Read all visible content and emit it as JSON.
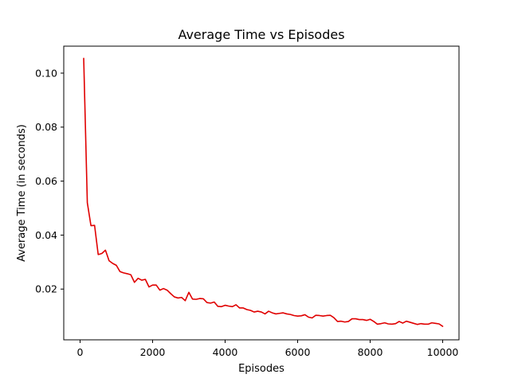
{
  "chart_data": {
    "type": "line",
    "title": "Average Time vs Episodes",
    "xlabel": "Episodes",
    "ylabel": "Average Time (in seconds)",
    "xlim": [
      -450,
      10450
    ],
    "ylim": [
      0.0012,
      0.11
    ],
    "xticks": [
      0,
      2000,
      4000,
      6000,
      8000,
      10000
    ],
    "xtick_labels": [
      "0",
      "2000",
      "4000",
      "6000",
      "8000",
      "10000"
    ],
    "yticks": [
      0.02,
      0.04,
      0.06,
      0.08,
      0.1
    ],
    "ytick_labels": [
      "0.02",
      "0.04",
      "0.06",
      "0.08",
      "0.10"
    ],
    "grid": false,
    "legend": "none",
    "series": [
      {
        "color": "#e00000",
        "x": [
          100,
          200,
          300,
          400,
          500,
          600,
          700,
          800,
          900,
          1000,
          1100,
          1200,
          1300,
          1400,
          1500,
          1600,
          1700,
          1800,
          1900,
          2000,
          2100,
          2200,
          2300,
          2400,
          2500,
          2600,
          2700,
          2800,
          2900,
          3000,
          3100,
          3200,
          3300,
          3400,
          3500,
          3600,
          3700,
          3800,
          3900,
          4000,
          4100,
          4200,
          4300,
          4400,
          4500,
          4600,
          4700,
          4800,
          4900,
          5000,
          5100,
          5200,
          5300,
          5400,
          5500,
          5600,
          5700,
          5800,
          5900,
          6000,
          6100,
          6200,
          6300,
          6400,
          6500,
          6600,
          6700,
          6800,
          6900,
          7000,
          7100,
          7200,
          7300,
          7400,
          7500,
          7600,
          7700,
          7800,
          7900,
          8000,
          8100,
          8200,
          8300,
          8400,
          8500,
          8600,
          8700,
          8800,
          8900,
          9000,
          9100,
          9200,
          9300,
          9400,
          9500,
          9600,
          9700,
          9800,
          9900,
          10000
        ],
        "y": [
          0.1055,
          0.052,
          0.0435,
          0.0436,
          0.0328,
          0.0332,
          0.0344,
          0.0305,
          0.0295,
          0.0288,
          0.0265,
          0.026,
          0.0257,
          0.0253,
          0.0225,
          0.024,
          0.0233,
          0.0236,
          0.0208,
          0.0215,
          0.0215,
          0.0196,
          0.0202,
          0.0196,
          0.0183,
          0.0171,
          0.0167,
          0.0169,
          0.0157,
          0.0188,
          0.0163,
          0.0162,
          0.0165,
          0.0164,
          0.015,
          0.0148,
          0.0152,
          0.0136,
          0.0135,
          0.014,
          0.0137,
          0.0135,
          0.0142,
          0.013,
          0.013,
          0.0124,
          0.0121,
          0.0115,
          0.0118,
          0.0115,
          0.0108,
          0.0118,
          0.0112,
          0.0108,
          0.011,
          0.0112,
          0.0108,
          0.0106,
          0.0102,
          0.01,
          0.0101,
          0.0105,
          0.0096,
          0.0093,
          0.0103,
          0.0102,
          0.01,
          0.0102,
          0.0103,
          0.0094,
          0.008,
          0.0081,
          0.0078,
          0.008,
          0.009,
          0.009,
          0.0087,
          0.0087,
          0.0084,
          0.0088,
          0.008,
          0.007,
          0.0072,
          0.0075,
          0.0071,
          0.007,
          0.0072,
          0.008,
          0.0074,
          0.0081,
          0.0077,
          0.0073,
          0.0069,
          0.0072,
          0.007,
          0.007,
          0.0075,
          0.0073,
          0.0071,
          0.0062
        ]
      }
    ]
  }
}
